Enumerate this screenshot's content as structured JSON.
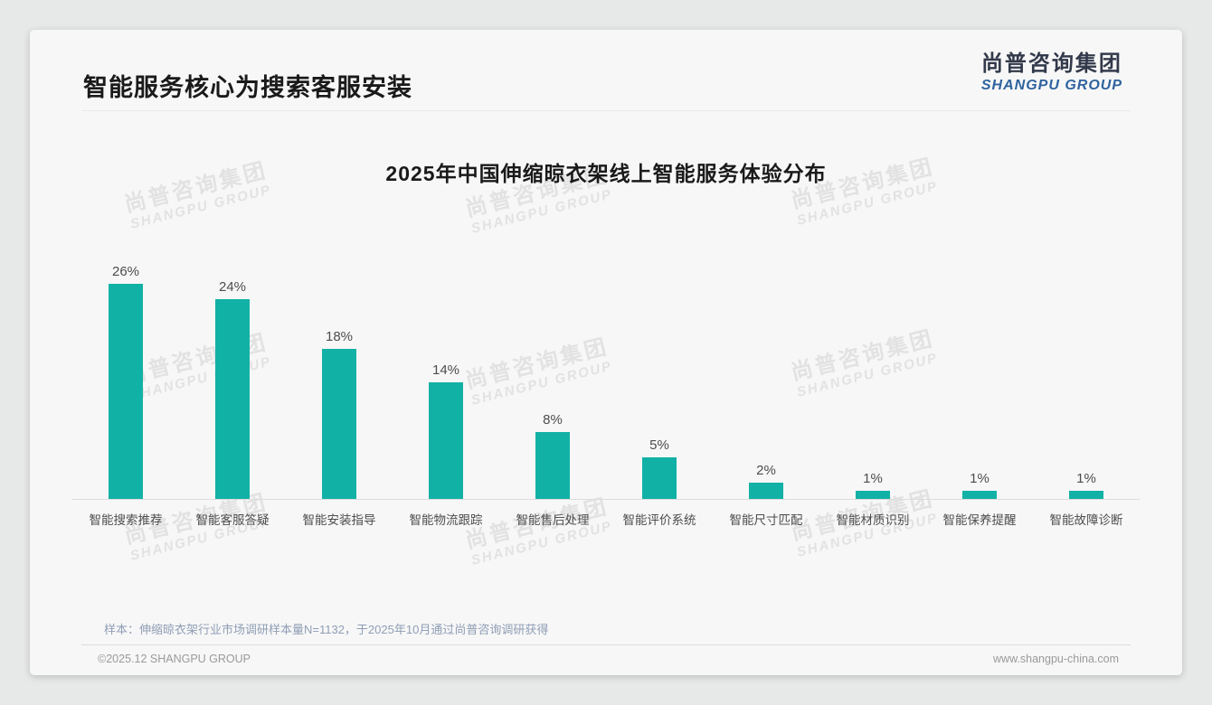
{
  "page": {
    "title": "智能服务核心为搜索客服安装",
    "logo": {
      "cn": "尚普咨询集团",
      "en": "SHANGPU GROUP"
    },
    "watermark": {
      "cn": "尚普咨询集团",
      "en": "SHANGPU GROUP"
    },
    "note": "样本：伸缩晾衣架行业市场调研样本量N=1132，于2025年10月通过尚普咨询调研获得",
    "footer": {
      "left": "©2025.12 SHANGPU GROUP",
      "right": "www.shangpu-china.com"
    }
  },
  "chart_data": {
    "type": "bar",
    "title": "2025年中国伸缩晾衣架线上智能服务体验分布",
    "categories": [
      "智能搜索推荐",
      "智能客服答疑",
      "智能安装指导",
      "智能物流跟踪",
      "智能售后处理",
      "智能评价系统",
      "智能尺寸匹配",
      "智能材质识别",
      "智能保养提醒",
      "智能故障诊断"
    ],
    "values": [
      26,
      24,
      18,
      14,
      8,
      5,
      2,
      1,
      1,
      1
    ],
    "unit": "%",
    "value_labels": true,
    "grid": false,
    "ylim": [
      0,
      28
    ],
    "xlabel": "",
    "ylabel": ""
  },
  "colors": {
    "bar": "#12b1a6",
    "logo_cn": "#323a4b",
    "logo_en": "#2f639f",
    "note": "#8f9eb5",
    "title_text": "#1a1a1a"
  }
}
